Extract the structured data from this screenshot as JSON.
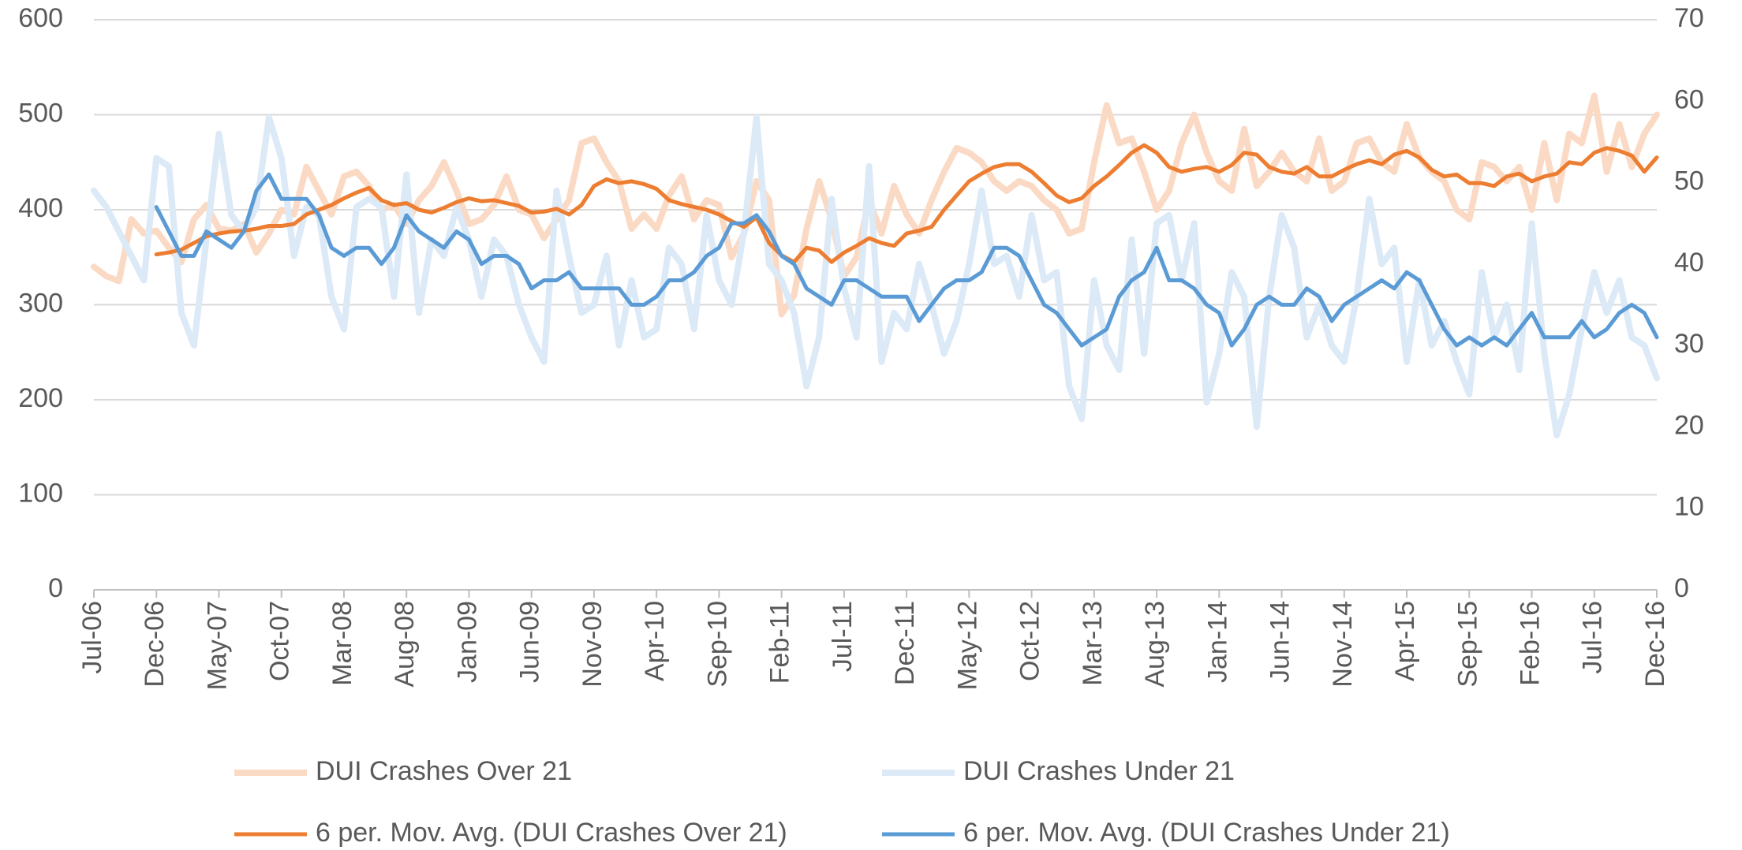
{
  "chart_data": {
    "type": "line",
    "categories": [
      "Jul-06",
      null,
      null,
      null,
      null,
      "Dec-06",
      null,
      null,
      null,
      null,
      "May-07",
      null,
      null,
      null,
      null,
      "Oct-07",
      null,
      null,
      null,
      null,
      "Mar-08",
      null,
      null,
      null,
      null,
      "Aug-08",
      null,
      null,
      null,
      null,
      "Jan-09",
      null,
      null,
      null,
      null,
      "Jun-09",
      null,
      null,
      null,
      null,
      "Nov-09",
      null,
      null,
      null,
      null,
      "Apr-10",
      null,
      null,
      null,
      null,
      "Sep-10",
      null,
      null,
      null,
      null,
      "Feb-11",
      null,
      null,
      null,
      null,
      "Jul-11",
      null,
      null,
      null,
      null,
      "Dec-11",
      null,
      null,
      null,
      null,
      "May-12",
      null,
      null,
      null,
      null,
      "Oct-12",
      null,
      null,
      null,
      null,
      "Mar-13",
      null,
      null,
      null,
      null,
      "Aug-13",
      null,
      null,
      null,
      null,
      "Jan-14",
      null,
      null,
      null,
      null,
      "Jun-14",
      null,
      null,
      null,
      null,
      "Nov-14",
      null,
      null,
      null,
      null,
      "Apr-15",
      null,
      null,
      null,
      null,
      "Sep-15",
      null,
      null,
      null,
      null,
      "Feb-16",
      null,
      null,
      null,
      null,
      "Jul-16",
      null,
      null,
      null,
      null,
      "Dec-16"
    ],
    "ylim": [
      0,
      600
    ],
    "yticks": [
      0,
      100,
      200,
      300,
      400,
      500,
      600
    ],
    "y2lim": [
      0,
      70
    ],
    "y2ticks": [
      0,
      10,
      20,
      30,
      40,
      50,
      60,
      70
    ],
    "grid": true,
    "legend": "bottom",
    "series": [
      {
        "name": "DUI Crashes Over 21",
        "color": "#fbdac5",
        "width": 8,
        "values": [
          340,
          330,
          325,
          390,
          375,
          378,
          360,
          345,
          390,
          405,
          380,
          378,
          385,
          355,
          375,
          400,
          395,
          445,
          420,
          395,
          435,
          440,
          425,
          400,
          405,
          385,
          410,
          425,
          450,
          420,
          385,
          390,
          405,
          435,
          400,
          395,
          370,
          390,
          410,
          470,
          475,
          450,
          430,
          380,
          395,
          380,
          415,
          435,
          390,
          410,
          405,
          350,
          375,
          430,
          410,
          290,
          310,
          380,
          430,
          390,
          330,
          350,
          410,
          375,
          425,
          395,
          375,
          410,
          440,
          465,
          460,
          450,
          430,
          420,
          430,
          425,
          410,
          400,
          375,
          380,
          450,
          510,
          470,
          475,
          440,
          400,
          420,
          470,
          500,
          460,
          430,
          420,
          485,
          425,
          440,
          460,
          440,
          430,
          475,
          420,
          430,
          470,
          475,
          450,
          440,
          490,
          455,
          440,
          430,
          400,
          390,
          450,
          445,
          430,
          445,
          400,
          470,
          410,
          480,
          470,
          520,
          440,
          490,
          445,
          480,
          500
        ]
      },
      {
        "name": "DUI Crashes Under 21",
        "color": "#dce9f6",
        "width": 8,
        "axis": "y2",
        "values": [
          49,
          47,
          44,
          41,
          38,
          53,
          52,
          34,
          30,
          43,
          56,
          46,
          44,
          47,
          58,
          53,
          41,
          47,
          46,
          36,
          32,
          47,
          48,
          47,
          36,
          51,
          34,
          43,
          41,
          47,
          43,
          36,
          43,
          41,
          35,
          31,
          28,
          49,
          41,
          34,
          35,
          41,
          30,
          38,
          31,
          32,
          42,
          40,
          32,
          46,
          38,
          35,
          44,
          58,
          40,
          38,
          34,
          25,
          31,
          48,
          37,
          31,
          52,
          28,
          34,
          32,
          40,
          35,
          29,
          33,
          40,
          49,
          40,
          41,
          36,
          46,
          38,
          39,
          25,
          21,
          38,
          30,
          27,
          43,
          29,
          45,
          46,
          38,
          45,
          23,
          29,
          39,
          36,
          20,
          36,
          46,
          42,
          31,
          35,
          30,
          28,
          36,
          48,
          40,
          42,
          28,
          38,
          30,
          33,
          28,
          24,
          39,
          31,
          35,
          27,
          45,
          29,
          19,
          24,
          32,
          39,
          34,
          38,
          31,
          30,
          26
        ]
      },
      {
        "name": "6 per. Mov. Avg. (DUI Crashes Over 21)",
        "color": "#ed7d31",
        "width": 5,
        "values": [
          null,
          null,
          null,
          null,
          null,
          353,
          355,
          358,
          365,
          372,
          375,
          377,
          378,
          380,
          383,
          383,
          385,
          395,
          400,
          405,
          412,
          418,
          423,
          410,
          405,
          407,
          400,
          397,
          402,
          408,
          412,
          409,
          410,
          407,
          404,
          397,
          398,
          401,
          395,
          405,
          425,
          432,
          428,
          430,
          427,
          422,
          410,
          406,
          403,
          400,
          395,
          388,
          382,
          392,
          365,
          352,
          345,
          360,
          357,
          345,
          355,
          362,
          370,
          365,
          362,
          375,
          378,
          382,
          400,
          415,
          430,
          438,
          445,
          448,
          448,
          440,
          428,
          415,
          408,
          412,
          425,
          435,
          447,
          460,
          468,
          460,
          445,
          440,
          443,
          445,
          440,
          447,
          460,
          458,
          445,
          440,
          438,
          445,
          435,
          435,
          442,
          448,
          452,
          448,
          458,
          462,
          455,
          442,
          435,
          437,
          428,
          428,
          425,
          435,
          438,
          430,
          435,
          438,
          450,
          448,
          460,
          465,
          462,
          457,
          440,
          455
        ]
      },
      {
        "name": "6 per. Mov. Avg. (DUI Crashes Under 21)",
        "color": "#5b9bd5",
        "width": 5,
        "axis": "y2",
        "values": [
          null,
          null,
          null,
          null,
          null,
          47,
          44,
          41,
          41,
          44,
          43,
          42,
          44,
          49,
          51,
          48,
          48,
          48,
          46,
          42,
          41,
          42,
          42,
          40,
          42,
          46,
          44,
          43,
          42,
          44,
          43,
          40,
          41,
          41,
          40,
          37,
          38,
          38,
          39,
          37,
          37,
          37,
          37,
          35,
          35,
          36,
          38,
          38,
          39,
          41,
          42,
          45,
          45,
          46,
          44,
          41,
          40,
          37,
          36,
          35,
          38,
          38,
          37,
          36,
          36,
          36,
          33,
          35,
          37,
          38,
          38,
          39,
          42,
          42,
          41,
          38,
          35,
          34,
          32,
          30,
          31,
          32,
          36,
          38,
          39,
          42,
          38,
          38,
          37,
          35,
          34,
          30,
          32,
          35,
          36,
          35,
          35,
          37,
          36,
          33,
          35,
          36,
          37,
          38,
          37,
          39,
          38,
          35,
          32,
          30,
          31,
          30,
          31,
          30,
          32,
          34,
          31,
          31,
          31,
          33,
          31,
          32,
          34,
          35,
          34,
          31
        ]
      }
    ]
  }
}
